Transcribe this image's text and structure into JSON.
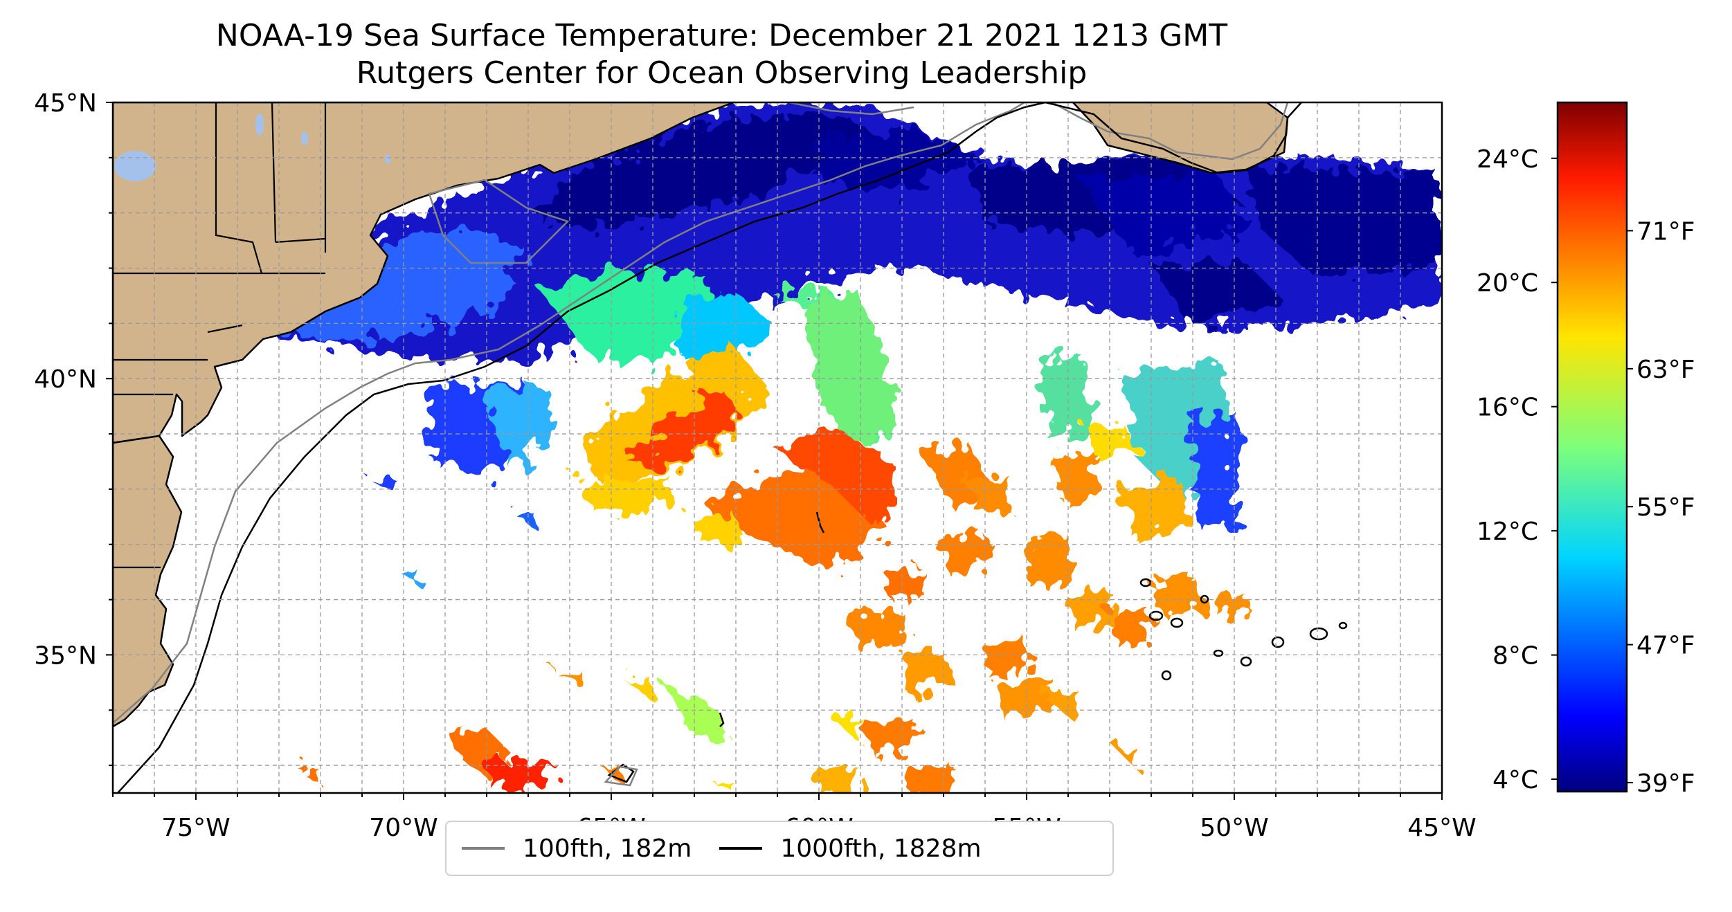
{
  "title": {
    "line1": "NOAA-19 Sea Surface Temperature: December 21 2021 1213 GMT",
    "line2": "Rutgers Center for Ocean Observing Leadership"
  },
  "map": {
    "projection": "plate-carree",
    "lon_range": [
      -77,
      -45
    ],
    "lat_range": [
      32.5,
      45
    ],
    "grid": true,
    "land_color": "#d2b48c",
    "lake_color": "#a3c1ea",
    "lon_ticks": [
      {
        "value": -75,
        "label": "75°W"
      },
      {
        "value": -70,
        "label": "70°W"
      },
      {
        "value": -65,
        "label": "65°W"
      },
      {
        "value": -60,
        "label": "60°W"
      },
      {
        "value": -55,
        "label": "55°W"
      },
      {
        "value": -50,
        "label": "50°W"
      },
      {
        "value": -45,
        "label": "45°W"
      }
    ],
    "lat_ticks": [
      {
        "value": 45,
        "label": "45°N"
      },
      {
        "value": 40,
        "label": "40°N"
      },
      {
        "value": 35,
        "label": "35°N"
      }
    ]
  },
  "colorbar": {
    "min_c": 3.6,
    "max_c": 25.8,
    "celsius_ticks": [
      {
        "value": 24,
        "label": "24°C"
      },
      {
        "value": 20,
        "label": "20°C"
      },
      {
        "value": 16,
        "label": "16°C"
      },
      {
        "value": 12,
        "label": "12°C"
      },
      {
        "value": 8,
        "label": "8°C"
      },
      {
        "value": 4,
        "label": "4°C"
      }
    ],
    "fahrenheit_ticks": [
      {
        "value": 71,
        "label": "71°F"
      },
      {
        "value": 63,
        "label": "63°F"
      },
      {
        "value": 55,
        "label": "55°F"
      },
      {
        "value": 47,
        "label": "47°F"
      },
      {
        "value": 39,
        "label": "39°F"
      }
    ]
  },
  "legend": {
    "items": [
      {
        "label": "100fth, 182m",
        "color": "#808080"
      },
      {
        "label": "1000fth, 1828m",
        "color": "#000000"
      }
    ]
  }
}
